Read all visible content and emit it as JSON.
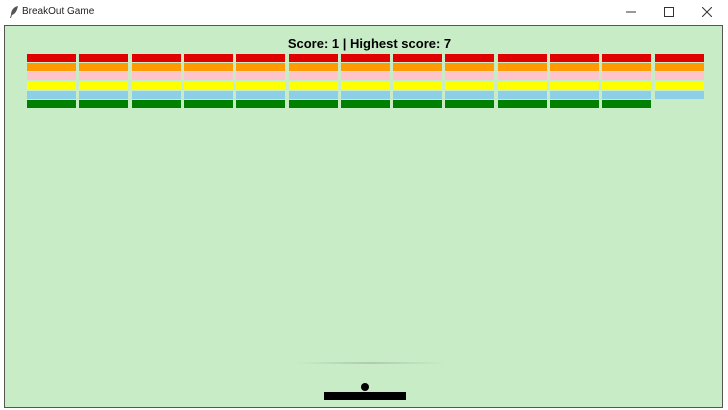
{
  "window": {
    "title": "BreakOut Game"
  },
  "game": {
    "score_label": "Score: 1 | Highest score: 7",
    "score": 1,
    "highest_score": 7,
    "background_color": "#c8ecc6",
    "brick_rows": [
      {
        "color": "#e00000",
        "count": 13
      },
      {
        "color": "#ff9a00",
        "count": 13
      },
      {
        "color": "#ffc4c9",
        "count": 13
      },
      {
        "color": "#ffff00",
        "count": 13
      },
      {
        "color": "#8ecfe8",
        "count": 13
      },
      {
        "color": "#008000",
        "count": 12
      }
    ],
    "ball_color": "#000000",
    "paddle_color": "#000000"
  }
}
